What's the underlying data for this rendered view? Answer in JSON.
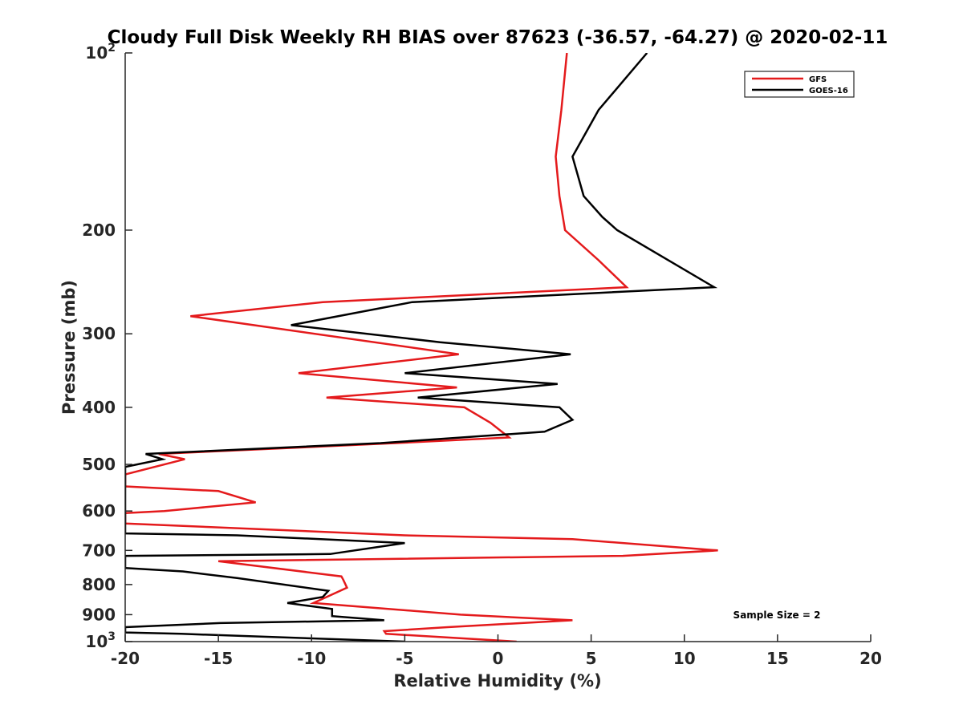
{
  "chart_data": {
    "type": "line",
    "title": "Cloudy Full Disk Weekly RH BIAS over 87623 (-36.57, -64.27) @ 2020-02-11",
    "xlabel": "Relative Humidity (%)",
    "ylabel": "Pressure (mb)",
    "x_axis": {
      "scale": "linear",
      "range": [
        -20,
        20
      ],
      "ticks": [
        -20,
        -15,
        -10,
        -5,
        0,
        5,
        10,
        15,
        20
      ]
    },
    "y_axis": {
      "scale": "log",
      "direction": "reversed",
      "range": [
        100,
        1000
      ],
      "ticks": [
        100,
        200,
        300,
        400,
        500,
        600,
        700,
        800,
        900,
        1000
      ],
      "tick_labels": [
        "10^2",
        "200",
        "300",
        "400",
        "500",
        "600",
        "700",
        "800",
        "900",
        "10^3"
      ]
    },
    "grid": false,
    "legend": {
      "position": "top-right",
      "entries": [
        "GFS",
        "GOES-16"
      ]
    },
    "colors": {
      "GFS": "#e41a1c",
      "GOES-16": "#000000"
    },
    "annotation": "Sample Size = 2",
    "series": [
      {
        "name": "GFS",
        "color": "#e41a1c",
        "points": [
          [
            3.7,
            100
          ],
          [
            3.4,
            125
          ],
          [
            3.1,
            150
          ],
          [
            3.3,
            175
          ],
          [
            3.6,
            200
          ],
          [
            5.4,
            225
          ],
          [
            6.9,
            250
          ],
          [
            -9.4,
            265
          ],
          [
            -16.5,
            280
          ],
          [
            -2.1,
            325
          ],
          [
            -10.7,
            350
          ],
          [
            -2.2,
            370
          ],
          [
            -9.2,
            385
          ],
          [
            -1.8,
            400
          ],
          [
            -0.4,
            425
          ],
          [
            0.6,
            450
          ],
          [
            -5.5,
            460
          ],
          [
            -18.2,
            480
          ],
          [
            -16.8,
            490
          ],
          [
            -20.0,
            520
          ],
          [
            -20.0,
            545
          ],
          [
            -15.0,
            555
          ],
          [
            -13.0,
            580
          ],
          [
            -17.9,
            600
          ],
          [
            -20.0,
            605
          ],
          [
            -20.0,
            630
          ],
          [
            -5.0,
            660
          ],
          [
            4.0,
            670
          ],
          [
            11.8,
            700
          ],
          [
            6.7,
            715
          ],
          [
            -15.0,
            730
          ],
          [
            -8.4,
            775
          ],
          [
            -8.3,
            785
          ],
          [
            -8.1,
            810
          ],
          [
            -9.9,
            860
          ],
          [
            -2.0,
            900
          ],
          [
            4.0,
            920
          ],
          [
            -2.7,
            945
          ],
          [
            -6.1,
            960
          ],
          [
            -6.0,
            970
          ],
          [
            1.0,
            1000
          ]
        ]
      },
      {
        "name": "GOES-16",
        "color": "#000000",
        "points": [
          [
            8.0,
            100
          ],
          [
            5.4,
            125
          ],
          [
            4.0,
            150
          ],
          [
            4.6,
            175
          ],
          [
            5.6,
            190
          ],
          [
            6.4,
            200
          ],
          [
            11.6,
            250
          ],
          [
            -4.6,
            265
          ],
          [
            -11.1,
            290
          ],
          [
            -3.1,
            310
          ],
          [
            3.9,
            325
          ],
          [
            -5.0,
            350
          ],
          [
            3.2,
            365
          ],
          [
            -4.3,
            385
          ],
          [
            3.3,
            400
          ],
          [
            4.0,
            420
          ],
          [
            2.5,
            440
          ],
          [
            -6.3,
            460
          ],
          [
            -18.9,
            480
          ],
          [
            -18.0,
            490
          ],
          [
            -20.0,
            505
          ],
          [
            -20.0,
            655
          ],
          [
            -14.0,
            660
          ],
          [
            -5.0,
            680
          ],
          [
            -9.0,
            710
          ],
          [
            -20.0,
            715
          ],
          [
            -20.0,
            750
          ],
          [
            -16.9,
            760
          ],
          [
            -14.0,
            780
          ],
          [
            -9.1,
            820
          ],
          [
            -9.4,
            840
          ],
          [
            -11.3,
            860
          ],
          [
            -8.9,
            880
          ],
          [
            -8.9,
            905
          ],
          [
            -6.1,
            920
          ],
          [
            -14.9,
            930
          ],
          [
            -20.0,
            945
          ],
          [
            -20.0,
            965
          ],
          [
            -17.0,
            970
          ],
          [
            -5.0,
            1000
          ]
        ]
      }
    ]
  }
}
